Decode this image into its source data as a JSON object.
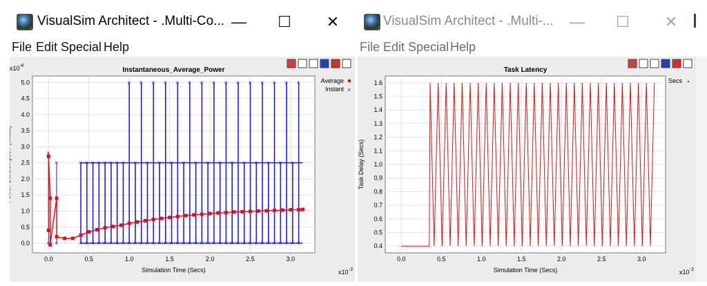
{
  "windows": [
    {
      "title": "VisualSim Architect - .Multi-Co...",
      "controls": {
        "minimize": "—",
        "maximize": "☐",
        "close": "✕"
      },
      "menu": [
        "File",
        "Edit",
        "Special",
        "Help"
      ],
      "plot": {
        "chart_data": {
          "type": "scatter",
          "title": "Instantaneous_Average_Power",
          "xlabel": "Simulation Time (Secs)",
          "ylabel": "Power Consumption (Watts)",
          "x_exponent": "x10",
          "x_exponent_power": "-2",
          "y_exponent": "x10",
          "y_exponent_power": "-4",
          "xlim": [
            -0.2,
            3.3
          ],
          "ylim": [
            -0.3,
            5.2
          ],
          "xticks": [
            "0.0",
            "0.5",
            "1.0",
            "1.5",
            "2.0",
            "2.5",
            "3.0"
          ],
          "yticks": [
            "0.0",
            "0.5",
            "1.0",
            "1.5",
            "2.0",
            "2.5",
            "3.0",
            "3.5",
            "4.0",
            "4.5",
            "5.0"
          ],
          "grid": true,
          "legend_position": "top-right",
          "series": [
            {
              "name": "Average",
              "color": "#e01010",
              "marker": "dot",
              "points": [
                [
                  0,
                  0.4
                ],
                [
                  0,
                  2.7
                ],
                [
                  0.02,
                  1.4
                ],
                [
                  0.02,
                  -0.05
                ],
                [
                  0.1,
                  1.4
                ],
                [
                  0.1,
                  0.2
                ],
                [
                  0.2,
                  0.15
                ],
                [
                  0.3,
                  0.15
                ],
                [
                  0.4,
                  0.25
                ],
                [
                  0.5,
                  0.35
                ],
                [
                  0.6,
                  0.42
                ],
                [
                  0.7,
                  0.48
                ],
                [
                  0.8,
                  0.52
                ],
                [
                  0.9,
                  0.56
                ],
                [
                  1.0,
                  0.62
                ],
                [
                  1.1,
                  0.66
                ],
                [
                  1.2,
                  0.7
                ],
                [
                  1.3,
                  0.74
                ],
                [
                  1.4,
                  0.77
                ],
                [
                  1.5,
                  0.8
                ],
                [
                  1.6,
                  0.83
                ],
                [
                  1.7,
                  0.86
                ],
                [
                  1.8,
                  0.88
                ],
                [
                  1.9,
                  0.9
                ],
                [
                  2.0,
                  0.92
                ],
                [
                  2.1,
                  0.94
                ],
                [
                  2.2,
                  0.95
                ],
                [
                  2.3,
                  0.97
                ],
                [
                  2.4,
                  0.98
                ],
                [
                  2.5,
                  0.99
                ],
                [
                  2.6,
                  1.0
                ],
                [
                  2.7,
                  1.01
                ],
                [
                  2.8,
                  1.02
                ],
                [
                  2.9,
                  1.03
                ],
                [
                  3.0,
                  1.04
                ],
                [
                  3.1,
                  1.04
                ],
                [
                  3.15,
                  1.05
                ]
              ]
            },
            {
              "name": "Instant",
              "color": "#1a1aff",
              "marker": "x",
              "pattern": {
                "low": 0.0,
                "mid": 2.5,
                "high": 5.0,
                "high_start": 0.85,
                "start": 0.4,
                "end": 3.15,
                "spacing": 0.075
              }
            }
          ]
        },
        "legend": [
          "Average",
          "Instant"
        ]
      }
    },
    {
      "title": "VisualSim Architect - .Multi-...",
      "controls": {
        "minimize": "—",
        "maximize": "☐",
        "close": "✕"
      },
      "menu": [
        "File",
        "Edit",
        "Special",
        "Help"
      ],
      "plot": {
        "chart_data": {
          "type": "line",
          "title": "Task Latency",
          "xlabel": "Simulation Time (Secs)",
          "ylabel": "Task Delay (Secs)",
          "x_exponent": "x10",
          "x_exponent_power": "-2",
          "xlim": [
            -0.2,
            3.3
          ],
          "ylim": [
            0.35,
            1.65
          ],
          "xticks": [
            "0.0",
            "0.5",
            "1.0",
            "1.5",
            "2.0",
            "2.5",
            "3.0"
          ],
          "yticks": [
            "0.4",
            "0.5",
            "0.6",
            "0.7",
            "0.8",
            "0.9",
            "1.0",
            "1.1",
            "1.2",
            "1.3",
            "1.4",
            "1.5",
            "1.6"
          ],
          "grid": true,
          "legend_position": "top-right",
          "series": [
            {
              "name": "Secs",
              "color": "#e01010",
              "pattern": {
                "baseline": 0.4,
                "baseline_end": 0.35,
                "low": 0.4,
                "high": 1.6,
                "start": 0.36,
                "end": 3.2,
                "period": 0.1
              }
            }
          ]
        },
        "legend": [
          "Secs"
        ]
      }
    }
  ]
}
